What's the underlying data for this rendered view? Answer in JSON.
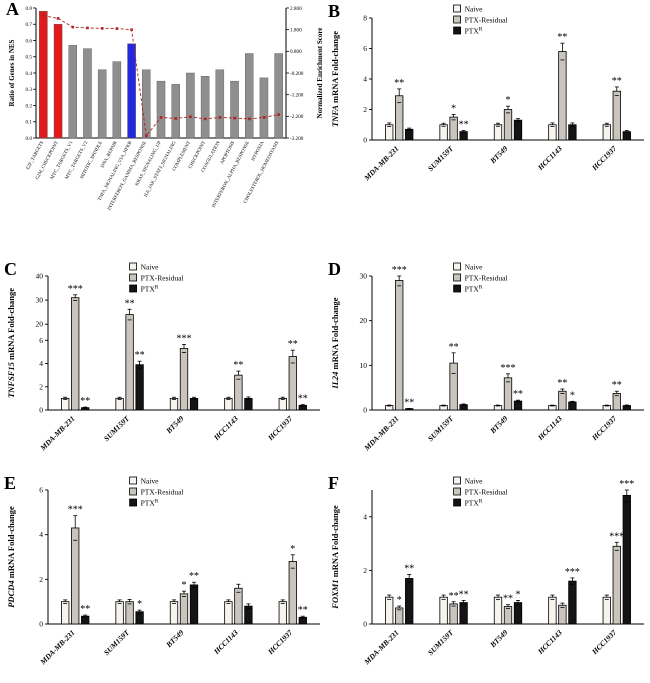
{
  "figure": {
    "background": "#ffffff"
  },
  "series_colors": {
    "naive": "#f7f4ee",
    "residual": "#c9c5bd",
    "ptxr": "#141414"
  },
  "panelA_colors": {
    "red": "#e31a1c",
    "blue": "#2228dd",
    "gray": "#8f8f8f",
    "line": "#b22222"
  },
  "chart_data": [
    {
      "panel_label": "A",
      "type": "bar+line",
      "ylabel_left": "Ratio of Genes in NES",
      "ylabel_right": "Normalized Enrichment Score",
      "categories": [
        "E2F_TARGETS",
        "G2M_CHECKPOINT",
        "MYC_TARGETS_V1",
        "MYC_TARGETS_V2",
        "MITOTIC_SPINDLE",
        "DNA_REPAIR",
        "TNFA_SIGNALING_VIA_NFKB",
        "INTERFERON_GAMMA_RESPONSE",
        "KRAS_SIGNALING_UP",
        "IL6_JAK_STAT3_SIGNALING",
        "COMPLEMENT",
        "CHECKPOINT",
        "COAGULATION",
        "APOPTOSIS",
        "INTERFERON_ALPHA_RESPONSE",
        "HYPOXIA",
        "CHOLESTEROL_HOMEOSTASIS"
      ],
      "bar_values": [
        0.78,
        0.7,
        0.57,
        0.55,
        0.42,
        0.47,
        0.58,
        0.42,
        0.35,
        0.33,
        0.4,
        0.38,
        0.42,
        0.35,
        0.52,
        0.37,
        0.52
      ],
      "bar_colors": [
        "red",
        "red",
        "gray",
        "gray",
        "gray",
        "gray",
        "blue",
        "gray",
        "gray",
        "gray",
        "gray",
        "gray",
        "gray",
        "gray",
        "gray",
        "gray",
        "gray"
      ],
      "line_values": [
        2.45,
        2.32,
        1.92,
        1.88,
        1.86,
        1.85,
        1.8,
        -3.1,
        -2.25,
        -2.3,
        -2.22,
        -2.32,
        -2.25,
        -2.28,
        -2.32,
        -2.25,
        -2.12
      ],
      "left_ticks": [
        "0.0",
        "0.1",
        "0.2",
        "0.3",
        "0.4",
        "0.5",
        "0.6",
        "0.7",
        "0.8"
      ],
      "left_ylim": [
        0,
        0.8
      ],
      "right_ticks": [
        "2.800",
        "1.800",
        "0.800",
        "-0.200",
        "-1.200",
        "-2.200",
        "-3.200"
      ],
      "right_ylim": [
        -3.2,
        2.8
      ]
    },
    {
      "panel_label": "B",
      "type": "grouped-bar",
      "ylabel_gene": "TNFA",
      "ylabel_rest": " mRNA Fold-change",
      "categories": [
        "MDA-MB-231",
        "SUM159T",
        "BT549",
        "HCC1143",
        "HCC1937"
      ],
      "legend": [
        "Naive",
        "PTX-Residual",
        "PTX^R"
      ],
      "yticks": [
        0,
        2,
        4,
        6,
        8
      ],
      "axis_anchors": [
        [
          0,
          0
        ],
        [
          8,
          1
        ]
      ],
      "series": [
        {
          "name": "Naive",
          "values": [
            1.0,
            1.0,
            1.0,
            1.0,
            1.0
          ],
          "errors": [
            0.12,
            0.1,
            0.1,
            0.12,
            0.1
          ],
          "stars": [
            "",
            "",
            "",
            "",
            ""
          ]
        },
        {
          "name": "PTX-Residual",
          "values": [
            2.9,
            1.5,
            2.0,
            5.8,
            3.2
          ],
          "errors": [
            0.45,
            0.18,
            0.22,
            0.55,
            0.28
          ],
          "stars": [
            "**",
            "*",
            "*",
            "**",
            "**"
          ]
        },
        {
          "name": "PTX^R",
          "values": [
            0.7,
            0.55,
            1.3,
            1.0,
            0.55
          ],
          "errors": [
            0.08,
            0.07,
            0.1,
            0.12,
            0.07
          ],
          "stars": [
            "",
            "**",
            "",
            "",
            ""
          ]
        }
      ]
    },
    {
      "panel_label": "C",
      "type": "grouped-bar",
      "ylabel_gene": "TNFSF15",
      "ylabel_rest": " mRNA Fold-change",
      "categories": [
        "MDA-MB-231",
        "SUM159T",
        "BT549",
        "HCC1143",
        "HCC1937"
      ],
      "legend": [
        "Naive",
        "PTX-Residual",
        "PTX^R"
      ],
      "yticks": [
        0,
        2,
        4,
        6,
        20,
        30,
        40
      ],
      "axis_anchors": [
        [
          0,
          0
        ],
        [
          6,
          0.52
        ],
        [
          20,
          0.64
        ],
        [
          40,
          1
        ]
      ],
      "series": [
        {
          "name": "Naive",
          "values": [
            1.0,
            1.0,
            1.0,
            1.0,
            1.0
          ],
          "errors": [
            0.1,
            0.1,
            0.1,
            0.1,
            0.1
          ],
          "stars": [
            "",
            "",
            "",
            "",
            ""
          ]
        },
        {
          "name": "PTX-Residual",
          "values": [
            31,
            24,
            5.3,
            3.0,
            4.6
          ],
          "errors": [
            1.2,
            2.2,
            0.35,
            0.35,
            0.55
          ],
          "stars": [
            "***",
            "**",
            "***",
            "**",
            "**"
          ]
        },
        {
          "name": "PTX^R",
          "values": [
            0.2,
            3.9,
            1.0,
            1.0,
            0.4
          ],
          "errors": [
            0.05,
            0.3,
            0.1,
            0.12,
            0.06
          ],
          "stars": [
            "**",
            "**",
            "",
            "",
            "**"
          ]
        }
      ]
    },
    {
      "panel_label": "D",
      "type": "grouped-bar",
      "ylabel_gene": "IL24",
      "ylabel_rest": " mRNA Fold-change",
      "categories": [
        "MDA-MB-231",
        "SUM159T",
        "BT549",
        "HCC1143",
        "HCC1937"
      ],
      "legend": [
        "Naive",
        "PTX-Residual",
        "PTX^R"
      ],
      "yticks": [
        0,
        10,
        20,
        30
      ],
      "axis_anchors": [
        [
          0,
          0
        ],
        [
          30,
          1
        ]
      ],
      "series": [
        {
          "name": "Naive",
          "values": [
            1.0,
            1.0,
            1.0,
            1.0,
            1.0
          ],
          "errors": [
            0.1,
            0.1,
            0.1,
            0.1,
            0.1
          ],
          "stars": [
            "",
            "",
            "",
            "",
            ""
          ]
        },
        {
          "name": "PTX-Residual",
          "values": [
            29,
            10.5,
            7.2,
            4.2,
            3.7
          ],
          "errors": [
            1.2,
            2.3,
            0.9,
            0.5,
            0.5
          ],
          "stars": [
            "***",
            "**",
            "***",
            "**",
            "**"
          ]
        },
        {
          "name": "PTX^R",
          "values": [
            0.3,
            1.2,
            2.0,
            1.8,
            1.0
          ],
          "errors": [
            0.05,
            0.15,
            0.2,
            0.15,
            0.12
          ],
          "stars": [
            "**",
            "",
            "**",
            "*",
            ""
          ]
        }
      ]
    },
    {
      "panel_label": "E",
      "type": "grouped-bar",
      "ylabel_gene": "PDCD4",
      "ylabel_rest": " mRNA Fold-change",
      "categories": [
        "MDA-MB-231",
        "SUM159T",
        "BT549",
        "HCC1143",
        "HCC1937"
      ],
      "legend": [
        "Naive",
        "PTX-Residual",
        "PTX^R"
      ],
      "yticks": [
        0,
        2,
        4,
        6
      ],
      "axis_anchors": [
        [
          0,
          0
        ],
        [
          6,
          1
        ]
      ],
      "series": [
        {
          "name": "Naive",
          "values": [
            1.0,
            1.0,
            1.0,
            1.0,
            1.0
          ],
          "errors": [
            0.08,
            0.08,
            0.08,
            0.08,
            0.08
          ],
          "stars": [
            "",
            "",
            "",
            "",
            ""
          ]
        },
        {
          "name": "PTX-Residual",
          "values": [
            4.3,
            1.0,
            1.35,
            1.6,
            2.8
          ],
          "errors": [
            0.55,
            0.1,
            0.12,
            0.18,
            0.3
          ],
          "stars": [
            "***",
            "",
            "*",
            "",
            "*"
          ]
        },
        {
          "name": "PTX^R",
          "values": [
            0.35,
            0.55,
            1.75,
            0.8,
            0.3
          ],
          "errors": [
            0.05,
            0.07,
            0.12,
            0.1,
            0.05
          ],
          "stars": [
            "**",
            "*",
            "**",
            "",
            "**"
          ]
        }
      ]
    },
    {
      "panel_label": "F",
      "type": "grouped-bar",
      "ylabel_gene": "FOXM1",
      "ylabel_rest": " mRNA Fold-change",
      "categories": [
        "MDA-MB-231",
        "SUM159T",
        "BT549",
        "HCC1143",
        "HCC1937"
      ],
      "legend": [
        "Naive",
        "PTX-Residual",
        "PTX^R"
      ],
      "yticks": [
        0,
        2,
        4
      ],
      "axis_anchors": [
        [
          0,
          0
        ],
        [
          5,
          1
        ]
      ],
      "series": [
        {
          "name": "Naive",
          "values": [
            1.0,
            1.0,
            1.0,
            1.0,
            1.0
          ],
          "errors": [
            0.08,
            0.08,
            0.08,
            0.08,
            0.08
          ],
          "stars": [
            "",
            "",
            "",
            "",
            ""
          ]
        },
        {
          "name": "PTX-Residual",
          "values": [
            0.6,
            0.75,
            0.65,
            0.7,
            2.9
          ],
          "errors": [
            0.07,
            0.08,
            0.07,
            0.08,
            0.15
          ],
          "stars": [
            "*",
            "**",
            "**",
            "",
            "***"
          ]
        },
        {
          "name": "PTX^R",
          "values": [
            1.7,
            0.8,
            0.8,
            1.6,
            4.8
          ],
          "errors": [
            0.15,
            0.08,
            0.08,
            0.12,
            0.25
          ],
          "stars": [
            "**",
            "**",
            "*",
            "***",
            "***"
          ]
        }
      ]
    }
  ]
}
